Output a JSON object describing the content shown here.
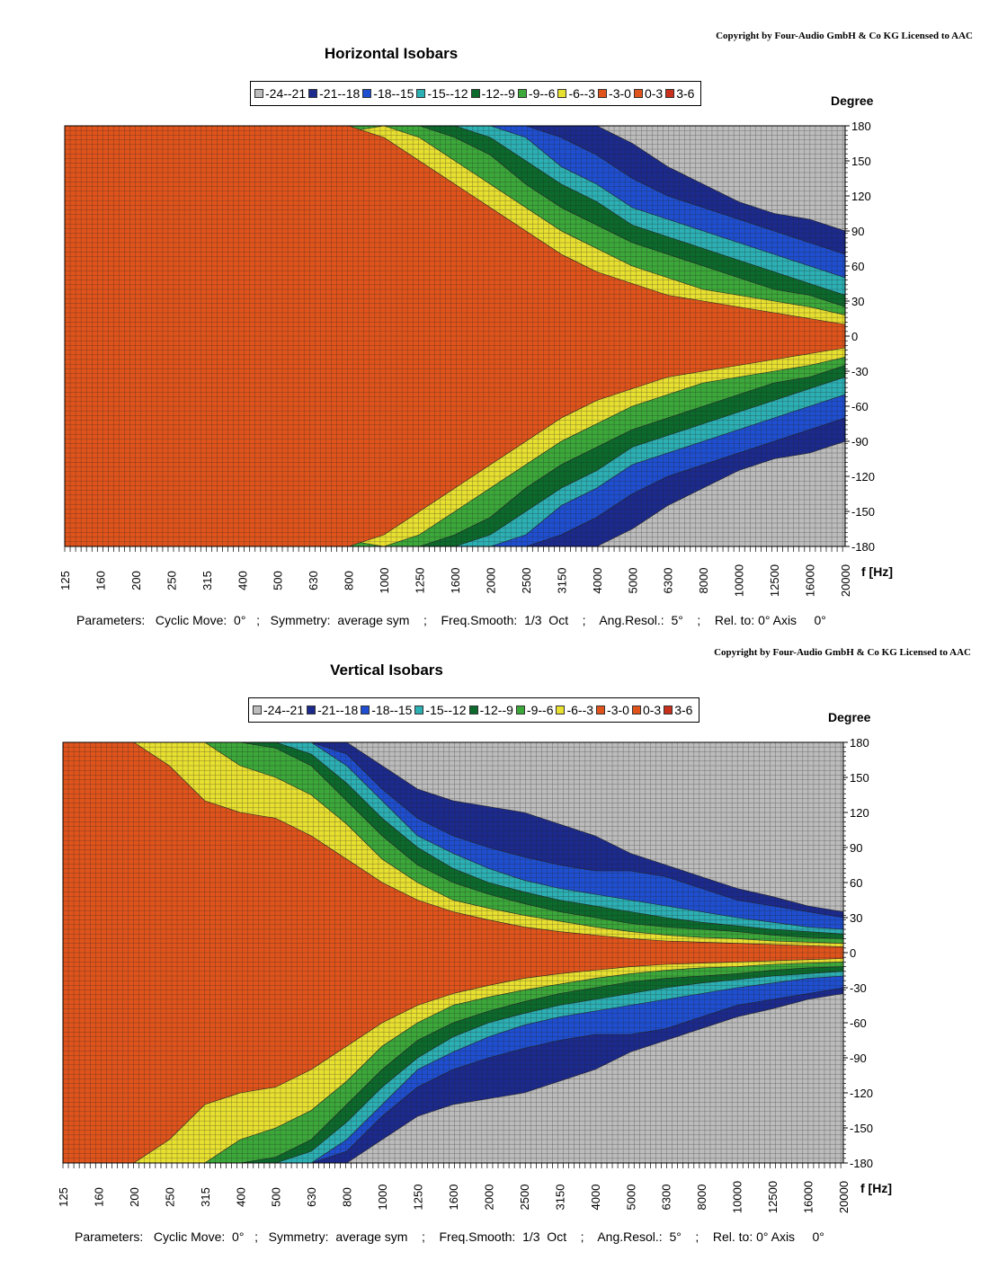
{
  "chart_data": [
    {
      "type": "heatmap",
      "title": "Horizontal Isobars",
      "copyright": "Copyright by Four-Audio GmbH & Co KG   Licensed to AAC",
      "legend": [
        {
          "label": "-24--21",
          "color": "#bcbcbc"
        },
        {
          "label": "-21--18",
          "color": "#1c2a8e"
        },
        {
          "label": "-18--15",
          "color": "#1f4fd0"
        },
        {
          "label": "-15--12",
          "color": "#2cb0b4"
        },
        {
          "label": "-12--9",
          "color": "#0c6a2c"
        },
        {
          "label": "-9--6",
          "color": "#3ca83a"
        },
        {
          "label": "-6--3",
          "color": "#e8e030"
        },
        {
          "label": "-3-0",
          "color": "#e0541c"
        },
        {
          "label": "0-3",
          "color": "#e0541c"
        },
        {
          "label": "3-6",
          "color": "#c8301c"
        }
      ],
      "ylabel": "Degree",
      "xlabel": "f [Hz]",
      "y_ticks": [
        "180",
        "150",
        "120",
        "90",
        "60",
        "30",
        "0",
        "-30",
        "-60",
        "-90",
        "-120",
        "-150",
        "-180"
      ],
      "x_ticks": [
        "125",
        "160",
        "200",
        "250",
        "315",
        "400",
        "500",
        "630",
        "800",
        "1000",
        "1250",
        "1600",
        "2000",
        "2500",
        "3150",
        "4000",
        "5000",
        "6300",
        "8000",
        "10000",
        "12500",
        "16000",
        "20000"
      ],
      "ylim": [
        -180,
        180
      ],
      "grid": true,
      "contour_edges_deg": {
        "freq": [
          125,
          160,
          200,
          250,
          315,
          400,
          500,
          630,
          800,
          1000,
          1250,
          1600,
          2000,
          2500,
          3150,
          4000,
          5000,
          6300,
          8000,
          10000,
          12500,
          16000,
          20000
        ],
        "-3": [
          180,
          180,
          180,
          180,
          180,
          180,
          180,
          180,
          180,
          170,
          150,
          130,
          110,
          90,
          70,
          55,
          45,
          35,
          30,
          25,
          20,
          15,
          10
        ],
        "-6": [
          180,
          180,
          180,
          180,
          180,
          180,
          180,
          160,
          175,
          180,
          170,
          150,
          130,
          110,
          90,
          75,
          60,
          50,
          40,
          35,
          30,
          25,
          18
        ],
        "-9": [
          180,
          180,
          180,
          180,
          180,
          180,
          180,
          180,
          180,
          180,
          180,
          170,
          155,
          130,
          110,
          95,
          80,
          70,
          60,
          50,
          40,
          35,
          25
        ],
        "-12": [
          180,
          180,
          180,
          180,
          180,
          180,
          180,
          180,
          180,
          180,
          180,
          180,
          170,
          150,
          130,
          115,
          95,
          85,
          75,
          65,
          55,
          45,
          35
        ],
        "-15": [
          180,
          180,
          180,
          180,
          180,
          180,
          180,
          180,
          180,
          180,
          180,
          180,
          180,
          170,
          145,
          130,
          110,
          100,
          90,
          80,
          70,
          60,
          50
        ],
        "-18": [
          180,
          180,
          180,
          180,
          180,
          180,
          180,
          180,
          180,
          180,
          180,
          180,
          180,
          180,
          170,
          155,
          135,
          120,
          110,
          100,
          90,
          80,
          70
        ],
        "-21": [
          180,
          180,
          180,
          180,
          180,
          180,
          180,
          180,
          180,
          180,
          180,
          180,
          180,
          180,
          180,
          180,
          165,
          145,
          130,
          115,
          105,
          100,
          90
        ]
      },
      "parameters": "Parameters:   Cyclic Move:  0°   ;   Symmetry:  average sym    ;    Freq.Smooth:  1/3  Oct    ;    Ang.Resol.:  5°    ;    Rel. to: 0° Axis     0°"
    },
    {
      "type": "heatmap",
      "title": "Vertical Isobars",
      "copyright": "Copyright by Four-Audio GmbH & Co KG   Licensed to AAC",
      "legend": [
        {
          "label": "-24--21",
          "color": "#bcbcbc"
        },
        {
          "label": "-21--18",
          "color": "#1c2a8e"
        },
        {
          "label": "-18--15",
          "color": "#1f4fd0"
        },
        {
          "label": "-15--12",
          "color": "#2cb0b4"
        },
        {
          "label": "-12--9",
          "color": "#0c6a2c"
        },
        {
          "label": "-9--6",
          "color": "#3ca83a"
        },
        {
          "label": "-6--3",
          "color": "#e8e030"
        },
        {
          "label": "-3-0",
          "color": "#e0541c"
        },
        {
          "label": "0-3",
          "color": "#e0541c"
        },
        {
          "label": "3-6",
          "color": "#c8301c"
        }
      ],
      "ylabel": "Degree",
      "xlabel": "f [Hz]",
      "y_ticks": [
        "180",
        "150",
        "120",
        "90",
        "60",
        "30",
        "0",
        "-30",
        "-60",
        "-90",
        "-120",
        "-150",
        "-180"
      ],
      "x_ticks": [
        "125",
        "160",
        "200",
        "250",
        "315",
        "400",
        "500",
        "630",
        "800",
        "1000",
        "1250",
        "1600",
        "2000",
        "2500",
        "3150",
        "4000",
        "5000",
        "6300",
        "8000",
        "10000",
        "12500",
        "16000",
        "20000"
      ],
      "ylim": [
        -180,
        180
      ],
      "grid": true,
      "contour_edges_deg": {
        "freq": [
          125,
          160,
          200,
          250,
          315,
          400,
          500,
          630,
          800,
          1000,
          1250,
          1600,
          2000,
          2500,
          3150,
          4000,
          5000,
          6300,
          8000,
          10000,
          12500,
          16000,
          20000
        ],
        "-3": [
          180,
          180,
          180,
          160,
          130,
          120,
          115,
          100,
          80,
          60,
          45,
          35,
          28,
          22,
          18,
          15,
          12,
          10,
          9,
          8,
          7,
          6,
          5
        ],
        "-6": [
          180,
          180,
          180,
          180,
          180,
          160,
          150,
          135,
          110,
          80,
          60,
          45,
          38,
          32,
          27,
          22,
          18,
          15,
          13,
          12,
          10,
          9,
          8
        ],
        "-9": [
          180,
          180,
          180,
          180,
          180,
          180,
          175,
          160,
          130,
          100,
          75,
          60,
          50,
          42,
          35,
          30,
          25,
          22,
          20,
          18,
          15,
          13,
          12
        ],
        "-12": [
          180,
          180,
          180,
          180,
          180,
          180,
          180,
          170,
          145,
          115,
          90,
          72,
          60,
          52,
          45,
          40,
          35,
          30,
          26,
          23,
          20,
          18,
          16
        ],
        "-15": [
          180,
          180,
          180,
          180,
          180,
          180,
          180,
          180,
          160,
          130,
          100,
          85,
          72,
          62,
          55,
          50,
          45,
          40,
          35,
          30,
          26,
          22,
          20
        ],
        "-18": [
          180,
          180,
          180,
          180,
          180,
          180,
          180,
          180,
          170,
          140,
          115,
          100,
          90,
          82,
          75,
          70,
          70,
          65,
          55,
          45,
          40,
          35,
          30
        ],
        "-21": [
          180,
          180,
          180,
          180,
          180,
          180,
          180,
          180,
          180,
          160,
          140,
          130,
          125,
          120,
          110,
          100,
          85,
          75,
          65,
          55,
          48,
          40,
          35
        ]
      },
      "parameters": "Parameters:   Cyclic Move:  0°   ;   Symmetry:  average sym    ;    Freq.Smooth:  1/3  Oct    ;    Ang.Resol.:  5°    ;    Rel. to: 0° Axis     0°"
    }
  ]
}
